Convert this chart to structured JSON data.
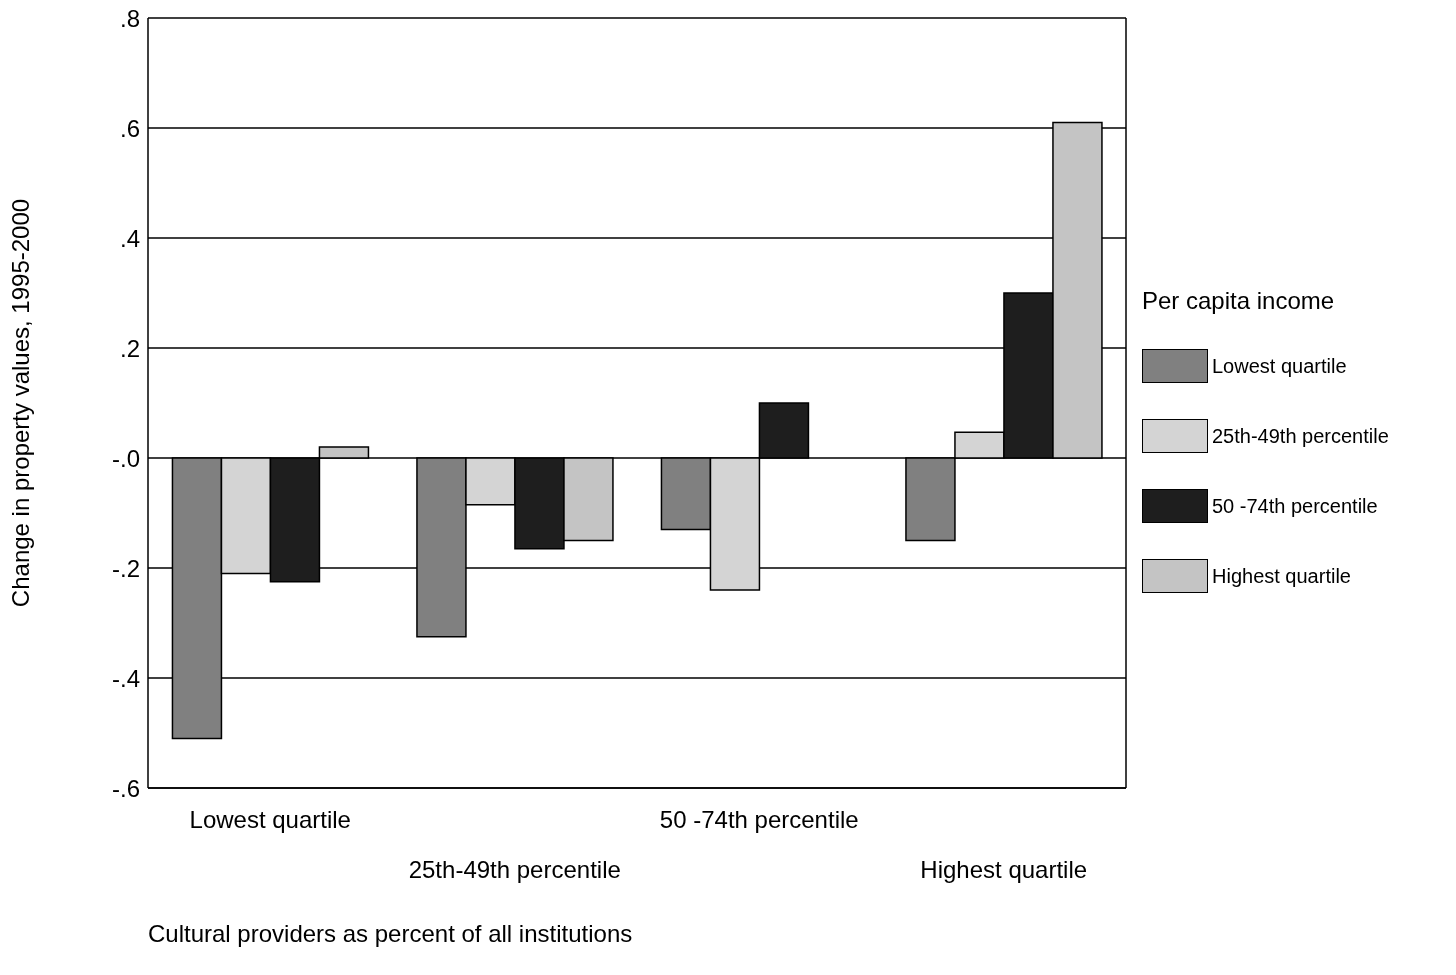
{
  "chart_data": {
    "type": "bar",
    "ylabel": "Change in property values, 1995-2000",
    "xlabel": "Cultural providers as percent of all institutions",
    "legend_title": "Per capita income",
    "categories": [
      "Lowest quartile",
      "25th-49th percentile",
      "50 -74th percentile",
      "Highest quartile"
    ],
    "series": [
      {
        "name": "Lowest quartile",
        "color": "#808080",
        "values": [
          -0.51,
          -0.325,
          -0.13,
          -0.15
        ]
      },
      {
        "name": "25th-49th percentile",
        "color": "#d4d4d4",
        "values": [
          -0.21,
          -0.085,
          -0.24,
          0.047
        ]
      },
      {
        "name": "50 -74th percentile",
        "color": "#1e1e1e",
        "values": [
          -0.225,
          -0.165,
          0.1,
          0.3
        ]
      },
      {
        "name": "Highest quartile",
        "color": "#c4c4c4",
        "values": [
          0.02,
          -0.15,
          0,
          0.61
        ]
      }
    ],
    "ylim": [
      -0.6,
      0.8
    ],
    "yticks": [
      {
        "value": 0.8,
        "label": ".8"
      },
      {
        "value": 0.6,
        "label": ".6"
      },
      {
        "value": 0.4,
        "label": ".4"
      },
      {
        "value": 0.2,
        "label": ".2"
      },
      {
        "value": 0,
        "label": "-.0"
      },
      {
        "value": -0.2,
        "label": "-.2"
      },
      {
        "value": -0.4,
        "label": "-.4"
      },
      {
        "value": -0.6,
        "label": "-.6"
      }
    ],
    "grid": "y",
    "legend": "right"
  }
}
